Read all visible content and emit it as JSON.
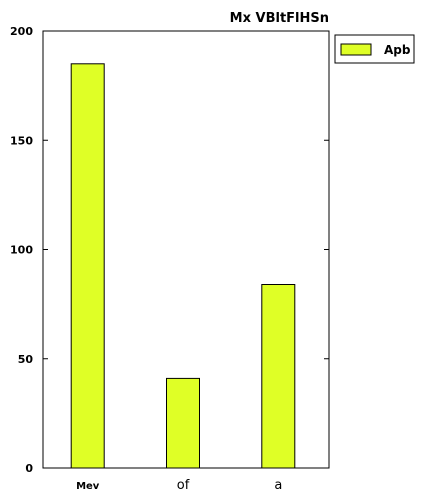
{
  "chart_data": {
    "type": "bar",
    "title": "Mx  VBltFlHSn",
    "categories": [
      "Mev",
      "of",
      "a"
    ],
    "series": [
      {
        "name": "Apb",
        "values": [
          185,
          41,
          84
        ],
        "color": "#dfff26"
      }
    ],
    "xlabel": "",
    "ylabel": "",
    "ylim": [
      0,
      200
    ],
    "yticks": [
      0,
      50,
      100,
      150,
      200
    ],
    "grid": false,
    "legend_position": "top-right (outside plot area)"
  }
}
